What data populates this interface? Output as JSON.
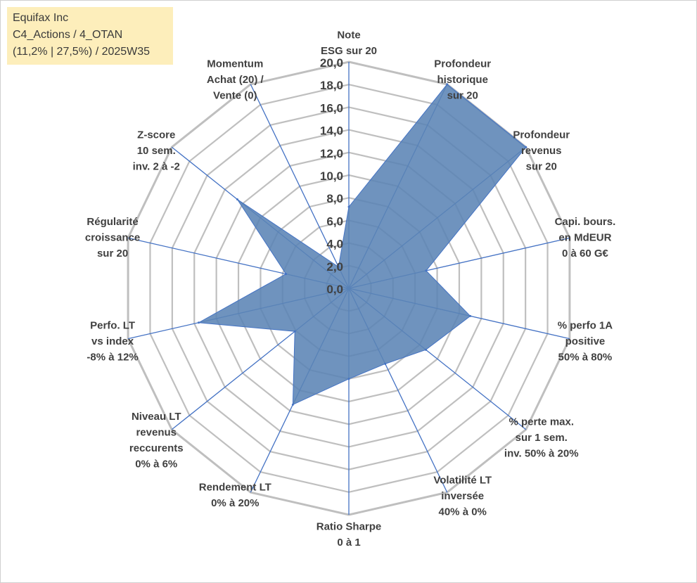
{
  "title_box": {
    "line1": "Equifax Inc",
    "line2": "C4_Actions / 4_OTAN",
    "line3": "(11,2% | 27,5%) / 2025W35"
  },
  "chart_data": {
    "type": "radar",
    "rmin": 0,
    "rmax": 20,
    "tick_step": 2,
    "tick_labels": [
      "0,0",
      "2,0",
      "4,0",
      "6,0",
      "8,0",
      "10,0",
      "12,0",
      "14,0",
      "16,0",
      "18,0",
      "20,0"
    ],
    "axes": [
      {
        "label": [
          "Note",
          "ESG sur 20"
        ],
        "value": 7.2
      },
      {
        "label": [
          "Profondeur",
          "historique",
          "sur 20"
        ],
        "value": 20.0
      },
      {
        "label": [
          "Profondeur",
          "revenus",
          "sur 20"
        ],
        "value": 20.0
      },
      {
        "label": [
          "Capi. bours.",
          "en MdEUR",
          "0 à 60 G€"
        ],
        "value": 7.0
      },
      {
        "label": [
          "% perfo 1A",
          "positive",
          "50% à 80%"
        ],
        "value": 11.0
      },
      {
        "label": [
          "% perte max.",
          "sur 1 sem.",
          "inv. 50% à 20%"
        ],
        "value": 8.7
      },
      {
        "label": [
          "Volatilité LT",
          "inversée",
          "40% à 0%"
        ],
        "value": 7.4
      },
      {
        "label": [
          "Ratio Sharpe",
          "0 à 1"
        ],
        "value": 8.0
      },
      {
        "label": [
          "Rendement LT",
          "0% à 20%"
        ],
        "value": 11.4
      },
      {
        "label": [
          "Niveau LT",
          "revenus",
          "reccurents",
          "0% à 6%"
        ],
        "value": 6.1
      },
      {
        "label": [
          "Perfo. LT",
          "vs index",
          "-8% à 12%"
        ],
        "value": 13.6
      },
      {
        "label": [
          "Régularité",
          "croissance",
          "sur 20"
        ],
        "value": 5.7
      },
      {
        "label": [
          "Z-score",
          "10 sem.",
          "inv. 2 à -2"
        ],
        "value": 12.6
      },
      {
        "label": [
          "Momentum",
          "Achat (20) /",
          "Vente (0)"
        ],
        "value": 2.1
      }
    ],
    "colors": {
      "fill": "#5b84b5",
      "stroke": "#4473c4",
      "grid": "#bfbfbf",
      "spoke": "#4472c4"
    }
  }
}
